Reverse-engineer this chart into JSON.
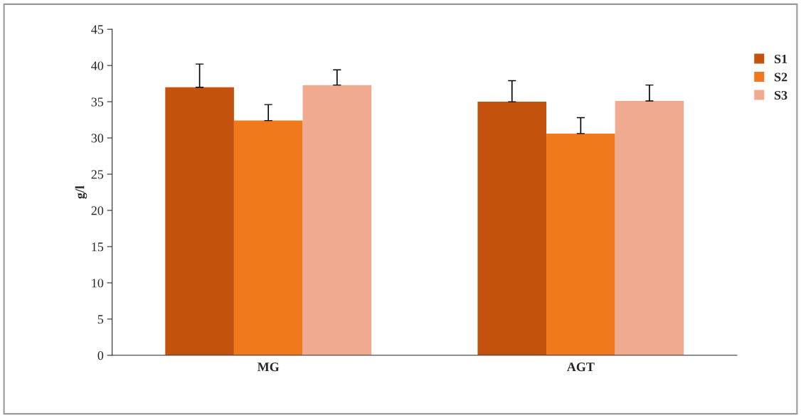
{
  "chart_data": {
    "type": "bar",
    "ylabel": "g/l",
    "categories": [
      "MG",
      "AGT"
    ],
    "series": [
      {
        "name": "S1",
        "color": "#c4520f",
        "values": [
          37.0,
          35.0
        ],
        "errors": [
          [
            37.0,
            40.2
          ],
          [
            35.0,
            37.9
          ]
        ]
      },
      {
        "name": "S2",
        "color": "#f2781c",
        "values": [
          32.4,
          30.6
        ],
        "errors": [
          [
            32.4,
            34.6
          ],
          [
            30.6,
            32.8
          ]
        ]
      },
      {
        "name": "S3",
        "color": "#f0aa90",
        "values": [
          37.3,
          35.1
        ],
        "errors": [
          [
            37.3,
            39.4
          ],
          [
            35.1,
            37.3
          ]
        ]
      }
    ],
    "ylim": [
      0,
      45
    ],
    "yticks": [
      0,
      5,
      10,
      15,
      20,
      25,
      30,
      35,
      40,
      45
    ],
    "grid": false,
    "legend": "right"
  }
}
